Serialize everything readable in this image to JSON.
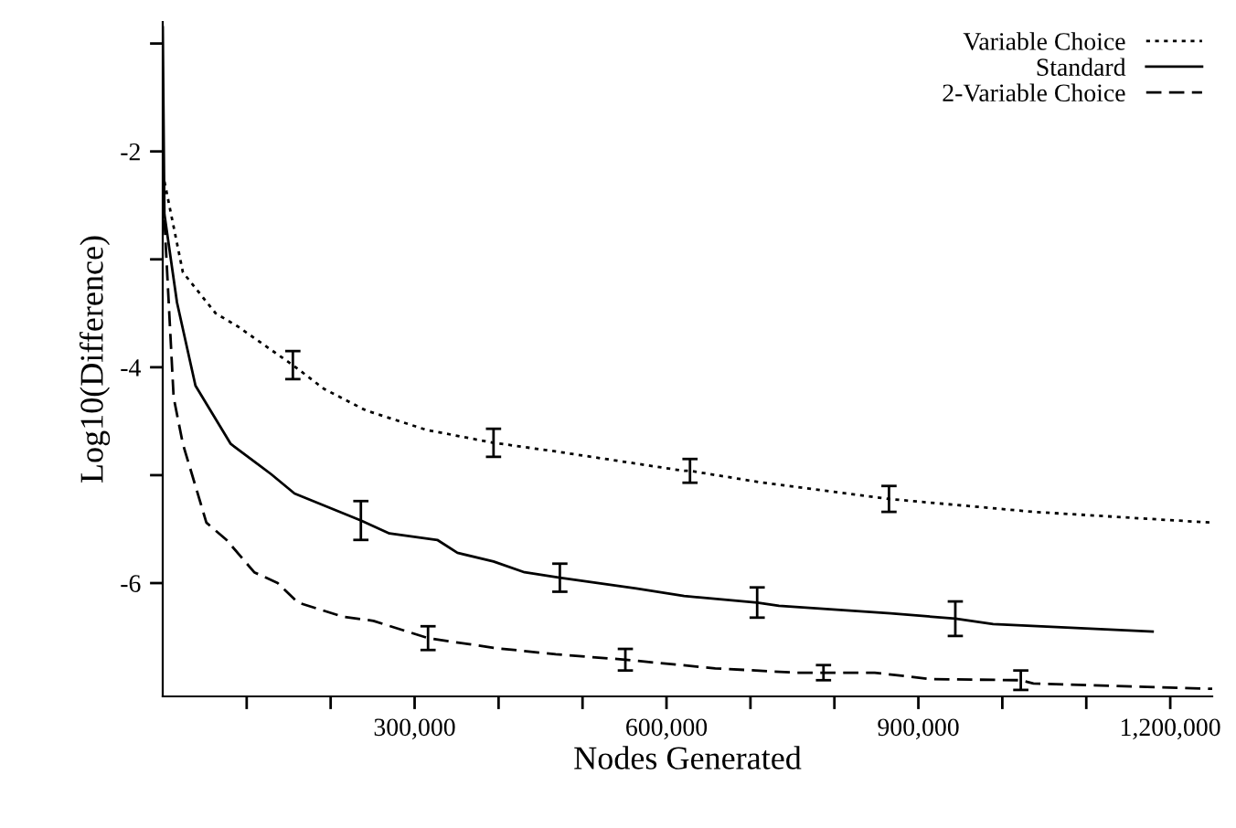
{
  "chart_data": {
    "type": "line",
    "xlabel": "Nodes Generated",
    "ylabel": "Log10(Difference)",
    "xlim": [
      0,
      1250000
    ],
    "ylim": [
      -7.05,
      -0.8
    ],
    "xticks": [
      {
        "value": 100000,
        "label": null
      },
      {
        "value": 200000,
        "label": null
      },
      {
        "value": 300000,
        "label": "300,000"
      },
      {
        "value": 400000,
        "label": null
      },
      {
        "value": 500000,
        "label": null
      },
      {
        "value": 600000,
        "label": "600,000"
      },
      {
        "value": 700000,
        "label": null
      },
      {
        "value": 800000,
        "label": null
      },
      {
        "value": 900000,
        "label": "900,000"
      },
      {
        "value": 1000000,
        "label": null
      },
      {
        "value": 1100000,
        "label": null
      },
      {
        "value": 1200000,
        "label": "1,200,000"
      }
    ],
    "yticks": [
      {
        "value": -1,
        "label": null
      },
      {
        "value": -2,
        "label": "-2"
      },
      {
        "value": -3,
        "label": null
      },
      {
        "value": -4,
        "label": "-4"
      },
      {
        "value": -5,
        "label": null
      },
      {
        "value": -6,
        "label": "-6"
      }
    ],
    "grid": false,
    "legend": "top right",
    "series": [
      {
        "name": "Variable Choice",
        "color": "#000000",
        "line_style": "dotted",
        "x": [
          0,
          24000,
          63000,
          89000,
          155000,
          192000,
          242000,
          314000,
          394000,
          468000,
          621000,
          628000,
          715000,
          865000,
          1037000,
          1250000
        ],
        "values": [
          -2.2,
          -3.12,
          -3.5,
          -3.62,
          -3.98,
          -4.2,
          -4.4,
          -4.58,
          -4.7,
          -4.78,
          -4.96,
          -4.96,
          -5.07,
          -5.22,
          -5.34,
          -5.44
        ],
        "errors": [
          null,
          null,
          null,
          null,
          0.13,
          null,
          null,
          null,
          0.13,
          null,
          null,
          0.11,
          null,
          0.12,
          null,
          null
        ]
      },
      {
        "name": "Standard",
        "color": "#000000",
        "line_style": "solid",
        "x": [
          0,
          2000,
          17000,
          39000,
          81000,
          129000,
          157000,
          236000,
          270000,
          327000,
          351000,
          394000,
          431000,
          473000,
          564000,
          621000,
          708000,
          734000,
          867000,
          944000,
          989000,
          1179000
        ],
        "values": [
          -0.85,
          -2.58,
          -3.4,
          -4.17,
          -4.71,
          -4.99,
          -5.17,
          -5.42,
          -5.54,
          -5.6,
          -5.72,
          -5.8,
          -5.9,
          -5.95,
          -6.05,
          -6.12,
          -6.18,
          -6.21,
          -6.28,
          -6.33,
          -6.38,
          -6.45
        ],
        "errors": [
          null,
          null,
          null,
          null,
          null,
          null,
          null,
          0.18,
          null,
          null,
          null,
          null,
          null,
          0.13,
          null,
          null,
          0.14,
          null,
          null,
          0.16,
          null,
          null
        ]
      },
      {
        "name": "2-Variable Choice",
        "color": "#000000",
        "line_style": "dashed",
        "x": [
          0,
          2000,
          13000,
          24000,
          52000,
          76000,
          109000,
          137000,
          161000,
          214000,
          251000,
          316000,
          394000,
          468000,
          551000,
          658000,
          754000,
          787000,
          848000,
          915000,
          1022000,
          1037000,
          1250000
        ],
        "values": [
          -2.21,
          -2.63,
          -4.28,
          -4.71,
          -5.44,
          -5.6,
          -5.9,
          -6.0,
          -6.18,
          -6.31,
          -6.35,
          -6.51,
          -6.6,
          -6.66,
          -6.71,
          -6.79,
          -6.83,
          -6.83,
          -6.83,
          -6.89,
          -6.9,
          -6.93,
          -6.98
        ],
        "errors": [
          null,
          null,
          null,
          null,
          null,
          null,
          null,
          null,
          null,
          null,
          null,
          0.11,
          null,
          null,
          0.1,
          null,
          null,
          0.07,
          null,
          null,
          0.09,
          null,
          null
        ]
      }
    ]
  }
}
